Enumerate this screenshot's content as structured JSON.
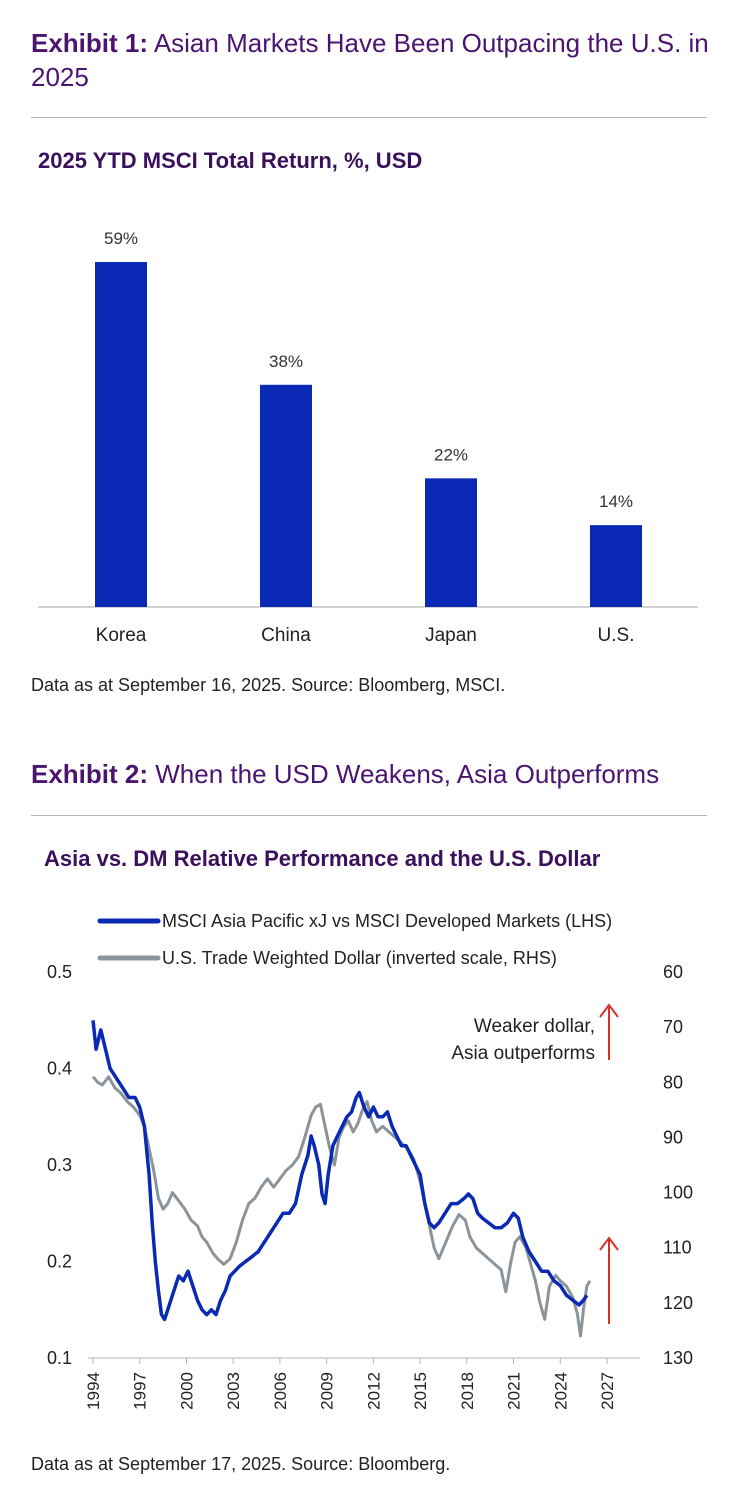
{
  "exhibit1": {
    "label": "Exhibit 1:",
    "title": "Asian Markets Have Been Outpacing the U.S. in 2025",
    "source": "Data as at September 16, 2025. Source: Bloomberg, MSCI."
  },
  "exhibit2": {
    "label": "Exhibit 2:",
    "title": "When the USD Weakens, Asia Outperforms",
    "source": "Data as at September 17, 2025. Source: Bloomberg.",
    "annotation_line1": "Weaker dollar,",
    "annotation_line2": "Asia outperforms"
  },
  "colors": {
    "bar": "#0a29b4",
    "asia": "#0a29b4",
    "usd": "#8c949b",
    "arrow": "#d9302a",
    "title": "#3a0f5c"
  },
  "chart_data": [
    {
      "type": "bar",
      "title": "2025 YTD MSCI Total Return, %, USD",
      "categories": [
        "Korea",
        "China",
        "Japan",
        "U.S."
      ],
      "values": [
        59,
        38,
        22,
        14
      ],
      "data_labels": [
        "59%",
        "38%",
        "22%",
        "14%"
      ],
      "ylim": [
        0,
        70
      ]
    },
    {
      "type": "line",
      "title": "Asia vs. DM Relative Performance and the U.S. Dollar",
      "x_ticks": [
        "1994",
        "1997",
        "2000",
        "2003",
        "2006",
        "2009",
        "2012",
        "2015",
        "2018",
        "2021",
        "2024",
        "2027"
      ],
      "x_range": [
        1994,
        2027
      ],
      "y_left": {
        "ticks": [
          "0.1",
          "0.2",
          "0.3",
          "0.4",
          "0.5"
        ],
        "range": [
          0.1,
          0.5
        ]
      },
      "y_right": {
        "ticks": [
          "60",
          "70",
          "80",
          "90",
          "100",
          "110",
          "120",
          "130"
        ],
        "range": [
          60,
          130
        ],
        "inverted": true
      },
      "legend": "top",
      "series": [
        {
          "name": "MSCI Asia Pacific xJ vs MSCI Developed Markets (LHS)",
          "axis": "left",
          "points": [
            [
              1994.0,
              0.45
            ],
            [
              1994.2,
              0.42
            ],
            [
              1994.5,
              0.44
            ],
            [
              1994.8,
              0.42
            ],
            [
              1995.1,
              0.4
            ],
            [
              1995.5,
              0.39
            ],
            [
              1995.9,
              0.38
            ],
            [
              1996.3,
              0.37
            ],
            [
              1996.7,
              0.37
            ],
            [
              1997.0,
              0.36
            ],
            [
              1997.3,
              0.34
            ],
            [
              1997.6,
              0.29
            ],
            [
              1997.8,
              0.24
            ],
            [
              1998.0,
              0.2
            ],
            [
              1998.2,
              0.17
            ],
            [
              1998.4,
              0.145
            ],
            [
              1998.6,
              0.14
            ],
            [
              1998.9,
              0.155
            ],
            [
              1999.2,
              0.17
            ],
            [
              1999.5,
              0.185
            ],
            [
              1999.8,
              0.18
            ],
            [
              2000.1,
              0.19
            ],
            [
              2000.4,
              0.175
            ],
            [
              2000.7,
              0.16
            ],
            [
              2001.0,
              0.15
            ],
            [
              2001.3,
              0.145
            ],
            [
              2001.6,
              0.15
            ],
            [
              2001.9,
              0.145
            ],
            [
              2002.2,
              0.16
            ],
            [
              2002.5,
              0.17
            ],
            [
              2002.8,
              0.185
            ],
            [
              2003.1,
              0.19
            ],
            [
              2003.4,
              0.195
            ],
            [
              2003.8,
              0.2
            ],
            [
              2004.2,
              0.205
            ],
            [
              2004.6,
              0.21
            ],
            [
              2005.0,
              0.22
            ],
            [
              2005.4,
              0.23
            ],
            [
              2005.8,
              0.24
            ],
            [
              2006.2,
              0.25
            ],
            [
              2006.6,
              0.25
            ],
            [
              2007.0,
              0.26
            ],
            [
              2007.4,
              0.29
            ],
            [
              2007.8,
              0.31
            ],
            [
              2008.0,
              0.33
            ],
            [
              2008.2,
              0.32
            ],
            [
              2008.5,
              0.3
            ],
            [
              2008.7,
              0.27
            ],
            [
              2008.9,
              0.26
            ],
            [
              2009.1,
              0.29
            ],
            [
              2009.4,
              0.32
            ],
            [
              2009.7,
              0.33
            ],
            [
              2010.0,
              0.34
            ],
            [
              2010.3,
              0.35
            ],
            [
              2010.6,
              0.355
            ],
            [
              2010.9,
              0.37
            ],
            [
              2011.1,
              0.375
            ],
            [
              2011.4,
              0.36
            ],
            [
              2011.7,
              0.35
            ],
            [
              2012.0,
              0.36
            ],
            [
              2012.3,
              0.35
            ],
            [
              2012.6,
              0.35
            ],
            [
              2012.9,
              0.355
            ],
            [
              2013.2,
              0.34
            ],
            [
              2013.5,
              0.33
            ],
            [
              2013.8,
              0.32
            ],
            [
              2014.1,
              0.32
            ],
            [
              2014.4,
              0.31
            ],
            [
              2014.7,
              0.3
            ],
            [
              2015.0,
              0.29
            ],
            [
              2015.3,
              0.26
            ],
            [
              2015.6,
              0.24
            ],
            [
              2015.9,
              0.235
            ],
            [
              2016.2,
              0.24
            ],
            [
              2016.6,
              0.25
            ],
            [
              2017.0,
              0.26
            ],
            [
              2017.4,
              0.26
            ],
            [
              2017.8,
              0.265
            ],
            [
              2018.1,
              0.27
            ],
            [
              2018.4,
              0.265
            ],
            [
              2018.7,
              0.25
            ],
            [
              2019.0,
              0.245
            ],
            [
              2019.4,
              0.24
            ],
            [
              2019.8,
              0.235
            ],
            [
              2020.2,
              0.235
            ],
            [
              2020.6,
              0.24
            ],
            [
              2021.0,
              0.25
            ],
            [
              2021.3,
              0.245
            ],
            [
              2021.6,
              0.225
            ],
            [
              2022.0,
              0.21
            ],
            [
              2022.4,
              0.2
            ],
            [
              2022.8,
              0.19
            ],
            [
              2023.2,
              0.19
            ],
            [
              2023.6,
              0.18
            ],
            [
              2024.0,
              0.175
            ],
            [
              2024.4,
              0.165
            ],
            [
              2024.8,
              0.16
            ],
            [
              2025.2,
              0.155
            ],
            [
              2025.5,
              0.16
            ],
            [
              2025.7,
              0.165
            ]
          ]
        },
        {
          "name": "U.S. Trade Weighted Dollar (inverted scale, RHS)",
          "axis": "right",
          "points": [
            [
              1994.0,
              79.0
            ],
            [
              1994.3,
              80.0
            ],
            [
              1994.6,
              80.5
            ],
            [
              1995.0,
              79.0
            ],
            [
              1995.4,
              81.0
            ],
            [
              1995.8,
              82.0
            ],
            [
              1996.2,
              83.5
            ],
            [
              1996.6,
              84.5
            ],
            [
              1997.0,
              86.0
            ],
            [
              1997.3,
              88.0
            ],
            [
              1997.6,
              92.0
            ],
            [
              1997.9,
              96.0
            ],
            [
              1998.2,
              101.0
            ],
            [
              1998.5,
              103.0
            ],
            [
              1998.8,
              102.0
            ],
            [
              1999.1,
              100.0
            ],
            [
              1999.5,
              101.5
            ],
            [
              1999.9,
              103.0
            ],
            [
              2000.3,
              105.0
            ],
            [
              2000.7,
              106.0
            ],
            [
              2001.0,
              108.0
            ],
            [
              2001.3,
              109.0
            ],
            [
              2001.7,
              111.0
            ],
            [
              2002.0,
              112.0
            ],
            [
              2002.4,
              113.0
            ],
            [
              2002.8,
              112.0
            ],
            [
              2003.2,
              109.0
            ],
            [
              2003.6,
              105.0
            ],
            [
              2004.0,
              102.0
            ],
            [
              2004.4,
              101.0
            ],
            [
              2004.8,
              99.0
            ],
            [
              2005.2,
              97.5
            ],
            [
              2005.6,
              99.0
            ],
            [
              2006.0,
              97.5
            ],
            [
              2006.4,
              96.0
            ],
            [
              2006.8,
              95.0
            ],
            [
              2007.2,
              93.5
            ],
            [
              2007.6,
              90.0
            ],
            [
              2008.0,
              86.0
            ],
            [
              2008.3,
              84.5
            ],
            [
              2008.6,
              84.0
            ],
            [
              2008.9,
              88.0
            ],
            [
              2009.2,
              92.0
            ],
            [
              2009.5,
              95.0
            ],
            [
              2009.8,
              90.0
            ],
            [
              2010.1,
              88.0
            ],
            [
              2010.4,
              87.0
            ],
            [
              2010.7,
              89.0
            ],
            [
              2011.0,
              87.5
            ],
            [
              2011.3,
              85.0
            ],
            [
              2011.6,
              83.5
            ],
            [
              2011.9,
              87.0
            ],
            [
              2012.2,
              89.0
            ],
            [
              2012.6,
              88.0
            ],
            [
              2013.0,
              89.0
            ],
            [
              2013.4,
              90.0
            ],
            [
              2013.8,
              91.0
            ],
            [
              2014.2,
              92.0
            ],
            [
              2014.6,
              94.0
            ],
            [
              2015.0,
              98.0
            ],
            [
              2015.3,
              102.0
            ],
            [
              2015.6,
              106.0
            ],
            [
              2015.9,
              110.0
            ],
            [
              2016.2,
              112.0
            ],
            [
              2016.5,
              110.0
            ],
            [
              2016.8,
              108.0
            ],
            [
              2017.1,
              106.0
            ],
            [
              2017.5,
              104.0
            ],
            [
              2017.9,
              105.0
            ],
            [
              2018.2,
              108.0
            ],
            [
              2018.6,
              110.0
            ],
            [
              2019.0,
              111.0
            ],
            [
              2019.4,
              112.0
            ],
            [
              2019.8,
              113.0
            ],
            [
              2020.2,
              114.0
            ],
            [
              2020.5,
              118.0
            ],
            [
              2020.8,
              113.0
            ],
            [
              2021.1,
              109.0
            ],
            [
              2021.4,
              108.0
            ],
            [
              2021.8,
              110.0
            ],
            [
              2022.1,
              113.0
            ],
            [
              2022.4,
              116.0
            ],
            [
              2022.7,
              120.0
            ],
            [
              2023.0,
              123.0
            ],
            [
              2023.3,
              117.0
            ],
            [
              2023.7,
              115.0
            ],
            [
              2024.0,
              116.0
            ],
            [
              2024.4,
              117.0
            ],
            [
              2024.8,
              119.0
            ],
            [
              2025.1,
              122.0
            ],
            [
              2025.3,
              126.0
            ],
            [
              2025.5,
              121.0
            ],
            [
              2025.7,
              117.0
            ],
            [
              2025.9,
              116.0
            ]
          ]
        }
      ]
    }
  ]
}
